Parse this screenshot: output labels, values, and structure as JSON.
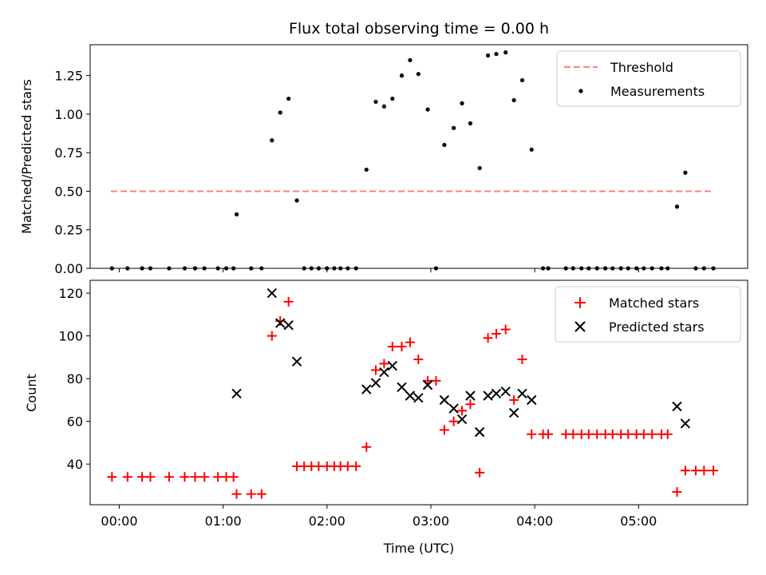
{
  "chart_data": [
    {
      "type": "scatter",
      "title": "Flux total observing time = 0.00 h",
      "xlabel": "",
      "ylabel": "Matched/Predicted stars",
      "xlim": [
        -0.28,
        6.05
      ],
      "ylim": [
        0,
        1.45
      ],
      "yticks": [
        0,
        0.25,
        0.5,
        0.75,
        1.0,
        1.25
      ],
      "ytick_labels": [
        "0.00",
        "0.25",
        "0.50",
        "0.75",
        "1.00",
        "1.25"
      ],
      "xticks": [
        0,
        1,
        2,
        3,
        4,
        5
      ],
      "legend": [
        "Threshold",
        "Measurements"
      ],
      "legend_position": "top-right",
      "threshold": {
        "name": "Threshold",
        "y": 0.5,
        "x": [
          -0.08,
          5.72
        ],
        "color": "#ff7f7f",
        "style": "dashed"
      },
      "series": [
        {
          "name": "Measurements",
          "color": "#000000",
          "marker": "dot",
          "x": [
            -0.07,
            0.08,
            0.22,
            0.3,
            0.48,
            0.63,
            0.73,
            0.82,
            0.95,
            1.03,
            1.1,
            1.13,
            1.27,
            1.37,
            1.47,
            1.55,
            1.63,
            1.71,
            1.78,
            1.85,
            1.92,
            2.0,
            2.07,
            2.13,
            2.2,
            2.28,
            2.38,
            2.47,
            2.55,
            2.63,
            2.72,
            2.8,
            2.88,
            2.97,
            3.05,
            3.13,
            3.22,
            3.3,
            3.38,
            3.47,
            3.55,
            3.63,
            3.72,
            3.8,
            3.88,
            3.97,
            4.08,
            4.13,
            4.3,
            4.37,
            4.45,
            4.52,
            4.6,
            4.68,
            4.75,
            4.83,
            4.9,
            4.98,
            5.05,
            5.13,
            5.22,
            5.28,
            5.37,
            5.45,
            5.55,
            5.63,
            5.72
          ],
          "y": [
            0,
            0,
            0,
            0,
            0,
            0,
            0,
            0,
            0,
            0,
            0,
            0.35,
            0,
            0,
            0.83,
            1.01,
            1.1,
            0.44,
            0,
            0,
            0,
            0,
            0,
            0,
            0,
            0,
            0.64,
            1.08,
            1.05,
            1.1,
            1.25,
            1.35,
            1.26,
            1.03,
            0,
            0.8,
            0.91,
            1.07,
            0.94,
            0.65,
            1.38,
            1.39,
            1.4,
            1.09,
            1.22,
            0.77,
            0,
            0,
            0,
            0,
            0,
            0,
            0,
            0,
            0,
            0,
            0,
            0,
            0,
            0,
            0,
            0,
            0.4,
            0.62,
            0,
            0,
            0
          ]
        }
      ]
    },
    {
      "type": "scatter",
      "title": "",
      "xlabel": "Time (UTC)",
      "ylabel": "Count",
      "xlim": [
        -0.28,
        6.05
      ],
      "ylim": [
        21,
        126
      ],
      "yticks": [
        40,
        60,
        80,
        100,
        120
      ],
      "xticks": [
        0,
        1,
        2,
        3,
        4,
        5
      ],
      "xtick_labels": [
        "00:00",
        "01:00",
        "02:00",
        "03:00",
        "04:00",
        "05:00"
      ],
      "legend": [
        "Matched stars",
        "Predicted stars"
      ],
      "legend_position": "top-right",
      "series": [
        {
          "name": "Matched stars",
          "color": "#ff0000",
          "marker": "plus",
          "x": [
            -0.07,
            0.08,
            0.22,
            0.3,
            0.48,
            0.63,
            0.73,
            0.82,
            0.95,
            1.03,
            1.1,
            1.13,
            1.27,
            1.37,
            1.47,
            1.55,
            1.63,
            1.71,
            1.78,
            1.85,
            1.92,
            2.0,
            2.07,
            2.13,
            2.2,
            2.28,
            2.38,
            2.47,
            2.55,
            2.63,
            2.72,
            2.8,
            2.88,
            2.97,
            3.05,
            3.13,
            3.22,
            3.3,
            3.38,
            3.47,
            3.55,
            3.63,
            3.72,
            3.8,
            3.88,
            3.97,
            4.08,
            4.13,
            4.3,
            4.37,
            4.45,
            4.52,
            4.6,
            4.68,
            4.75,
            4.83,
            4.9,
            4.98,
            5.05,
            5.13,
            5.22,
            5.28,
            5.37,
            5.45,
            5.55,
            5.63,
            5.72
          ],
          "y": [
            34,
            34,
            34,
            34,
            34,
            34,
            34,
            34,
            34,
            34,
            34,
            26,
            26,
            26,
            100,
            107,
            116,
            39,
            39,
            39,
            39,
            39,
            39,
            39,
            39,
            39,
            48,
            84,
            87,
            95,
            95,
            97,
            89,
            79,
            79,
            56,
            60,
            65,
            68,
            36,
            99,
            101,
            103,
            70,
            89,
            54,
            54,
            54,
            54,
            54,
            54,
            54,
            54,
            54,
            54,
            54,
            54,
            54,
            54,
            54,
            54,
            54,
            27,
            37,
            37,
            37,
            37
          ]
        },
        {
          "name": "Predicted stars",
          "color": "#000000",
          "marker": "x",
          "x": [
            1.13,
            1.47,
            1.55,
            1.63,
            1.71,
            2.38,
            2.47,
            2.55,
            2.63,
            2.72,
            2.8,
            2.88,
            2.97,
            3.13,
            3.22,
            3.3,
            3.38,
            3.47,
            3.55,
            3.63,
            3.72,
            3.8,
            3.88,
            3.97,
            5.37,
            5.45
          ],
          "y": [
            73,
            120,
            106,
            105,
            88,
            75,
            78,
            83,
            86,
            76,
            72,
            71,
            77,
            70,
            66,
            61,
            72,
            55,
            72,
            73,
            74,
            64,
            73,
            70,
            67,
            59
          ]
        }
      ]
    }
  ]
}
